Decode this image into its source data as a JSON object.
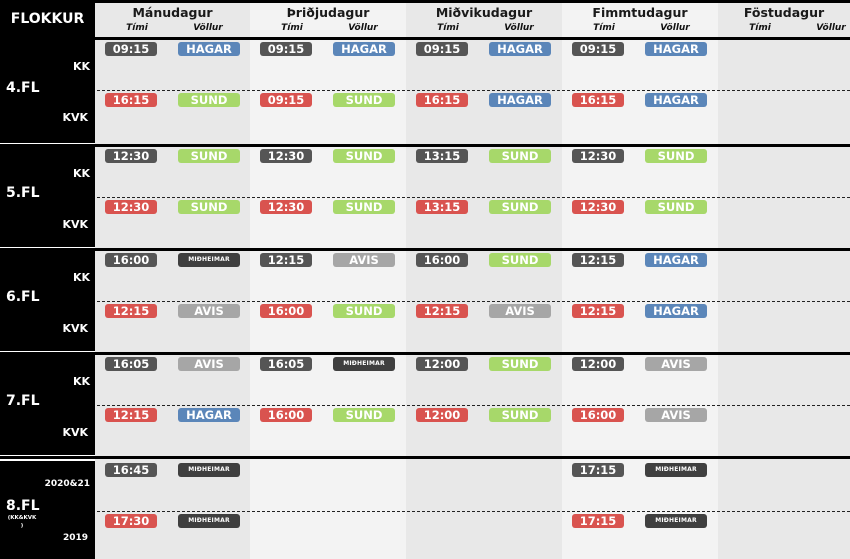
{
  "corner_label": "FLOKKUR",
  "colors": {
    "time_kk": "#555555",
    "time_kvk": "#d9534f",
    "HAGAR": "#5b86b9",
    "SUND": "#a7d86a",
    "AVIS": "#a6a6a6",
    "MIÐHEIMAR": "#3f3f3f",
    "col_light": "#f3f3f3",
    "col_mid": "#e8e8e8"
  },
  "days": [
    {
      "name": "Mánudagur",
      "time_label": "Tími",
      "field_label": "Völlur"
    },
    {
      "name": "Þriðjudagur",
      "time_label": "Tími",
      "field_label": "Völlur"
    },
    {
      "name": "Miðvikudagur",
      "time_label": "Tími",
      "field_label": "Völlur"
    },
    {
      "name": "Fimmtudagur",
      "time_label": "Tími",
      "field_label": "Völlur"
    },
    {
      "name": "Föstudagur",
      "time_label": "Tími",
      "field_label": "Völlur"
    }
  ],
  "groups": [
    {
      "label": "4.FL",
      "sublabel": "",
      "kk_label": "KK",
      "kvk_label": "KVK",
      "kk": [
        {
          "time": "09:15",
          "field": "HAGAR"
        },
        {
          "time": "09:15",
          "field": "HAGAR"
        },
        {
          "time": "09:15",
          "field": "HAGAR"
        },
        {
          "time": "09:15",
          "field": "HAGAR"
        },
        null
      ],
      "kvk": [
        {
          "time": "16:15",
          "field": "SUND"
        },
        {
          "time": "09:15",
          "field": "SUND"
        },
        {
          "time": "16:15",
          "field": "HAGAR"
        },
        {
          "time": "16:15",
          "field": "HAGAR"
        },
        null
      ]
    },
    {
      "label": "5.FL",
      "sublabel": "",
      "kk_label": "KK",
      "kvk_label": "KVK",
      "kk": [
        {
          "time": "12:30",
          "field": "SUND"
        },
        {
          "time": "12:30",
          "field": "SUND"
        },
        {
          "time": "13:15",
          "field": "SUND"
        },
        {
          "time": "12:30",
          "field": "SUND"
        },
        null
      ],
      "kvk": [
        {
          "time": "12:30",
          "field": "SUND"
        },
        {
          "time": "12:30",
          "field": "SUND"
        },
        {
          "time": "13:15",
          "field": "SUND"
        },
        {
          "time": "12:30",
          "field": "SUND"
        },
        null
      ]
    },
    {
      "label": "6.FL",
      "sublabel": "",
      "kk_label": "KK",
      "kvk_label": "KVK",
      "kk": [
        {
          "time": "16:00",
          "field": "MIÐHEIMAR"
        },
        {
          "time": "12:15",
          "field": "AVIS"
        },
        {
          "time": "16:00",
          "field": "SUND"
        },
        {
          "time": "12:15",
          "field": "HAGAR"
        },
        null
      ],
      "kvk": [
        {
          "time": "12:15",
          "field": "AVIS"
        },
        {
          "time": "16:00",
          "field": "SUND"
        },
        {
          "time": "12:15",
          "field": "AVIS"
        },
        {
          "time": "12:15",
          "field": "HAGAR"
        },
        null
      ]
    },
    {
      "label": "7.FL",
      "sublabel": "",
      "kk_label": "KK",
      "kvk_label": "KVK",
      "kk": [
        {
          "time": "16:05",
          "field": "AVIS"
        },
        {
          "time": "16:05",
          "field": "MIÐHEIMAR"
        },
        {
          "time": "12:00",
          "field": "SUND"
        },
        {
          "time": "12:00",
          "field": "AVIS"
        },
        null
      ],
      "kvk": [
        {
          "time": "12:15",
          "field": "HAGAR"
        },
        {
          "time": "16:00",
          "field": "SUND"
        },
        {
          "time": "12:00",
          "field": "SUND"
        },
        {
          "time": "16:00",
          "field": "AVIS"
        },
        null
      ]
    },
    {
      "label": "8.FL",
      "sublabel": "(KK&KVK\n)",
      "kk_label": "2020&21",
      "kvk_label": "2019",
      "kk": [
        {
          "time": "16:45",
          "field": "MIÐHEIMAR"
        },
        null,
        null,
        {
          "time": "17:15",
          "field": "MIÐHEIMAR"
        },
        null
      ],
      "kvk": [
        {
          "time": "17:30",
          "field": "MIÐHEIMAR"
        },
        null,
        null,
        {
          "time": "17:15",
          "field": "MIÐHEIMAR"
        },
        null
      ]
    }
  ]
}
